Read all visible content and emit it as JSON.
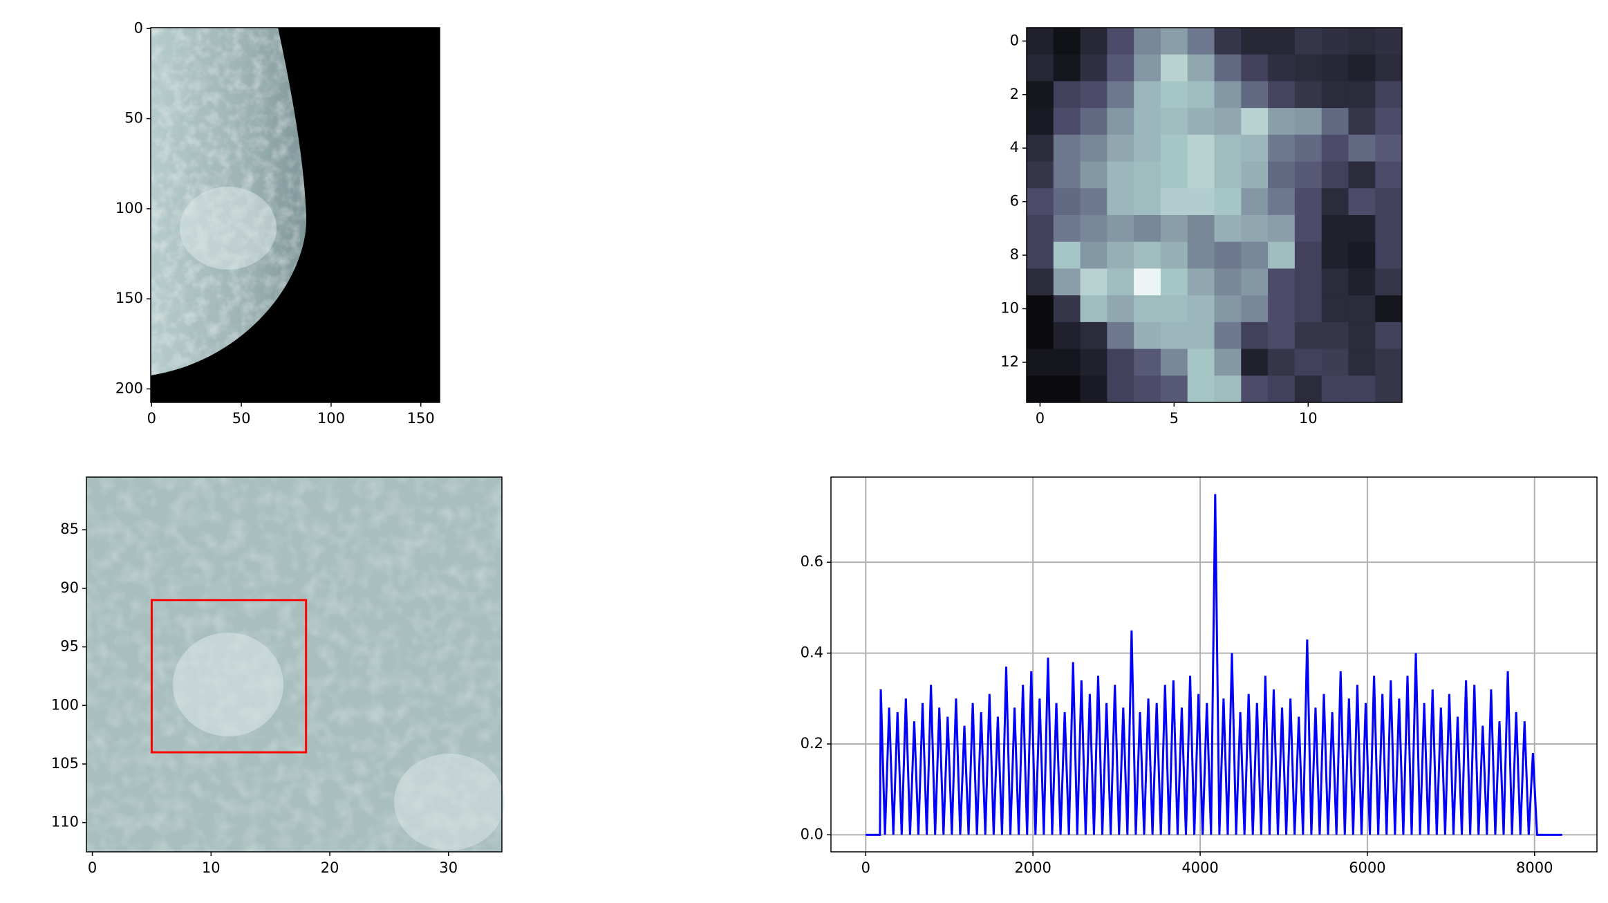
{
  "chart_data": [
    {
      "type": "image",
      "xlim": [
        -0.5,
        160.5
      ],
      "ylim": [
        207.5,
        -0.5
      ],
      "xticks": [
        0,
        50,
        100,
        150
      ],
      "yticks": [
        0,
        50,
        100,
        150,
        200
      ]
    },
    {
      "type": "heatmap",
      "colormap": "bone",
      "xlim": [
        -0.5,
        13.5
      ],
      "ylim": [
        13.5,
        -0.5
      ],
      "xticks": [
        0,
        5,
        10
      ],
      "yticks": [
        0,
        2,
        4,
        6,
        8,
        10,
        12
      ],
      "values": [
        [
          0.15,
          0.08,
          0.18,
          0.35,
          0.55,
          0.62,
          0.5,
          0.25,
          0.18,
          0.18,
          0.25,
          0.22,
          0.2,
          0.22
        ],
        [
          0.18,
          0.1,
          0.22,
          0.4,
          0.6,
          0.8,
          0.65,
          0.45,
          0.3,
          0.22,
          0.2,
          0.18,
          0.15,
          0.2
        ],
        [
          0.1,
          0.3,
          0.35,
          0.5,
          0.7,
          0.75,
          0.72,
          0.6,
          0.45,
          0.32,
          0.25,
          0.2,
          0.2,
          0.3
        ],
        [
          0.12,
          0.35,
          0.45,
          0.6,
          0.7,
          0.72,
          0.68,
          0.65,
          0.8,
          0.62,
          0.6,
          0.45,
          0.25,
          0.35
        ],
        [
          0.2,
          0.5,
          0.55,
          0.65,
          0.7,
          0.75,
          0.8,
          0.72,
          0.7,
          0.5,
          0.45,
          0.35,
          0.45,
          0.4
        ],
        [
          0.25,
          0.5,
          0.6,
          0.7,
          0.72,
          0.75,
          0.8,
          0.72,
          0.68,
          0.45,
          0.4,
          0.3,
          0.2,
          0.35
        ],
        [
          0.35,
          0.45,
          0.5,
          0.7,
          0.72,
          0.78,
          0.78,
          0.75,
          0.6,
          0.5,
          0.35,
          0.2,
          0.35,
          0.3
        ],
        [
          0.3,
          0.5,
          0.55,
          0.6,
          0.55,
          0.62,
          0.55,
          0.68,
          0.65,
          0.62,
          0.35,
          0.15,
          0.15,
          0.3
        ],
        [
          0.3,
          0.75,
          0.6,
          0.68,
          0.72,
          0.68,
          0.55,
          0.5,
          0.55,
          0.72,
          0.3,
          0.15,
          0.12,
          0.3
        ],
        [
          0.2,
          0.62,
          0.8,
          0.72,
          0.95,
          0.75,
          0.65,
          0.55,
          0.6,
          0.35,
          0.3,
          0.2,
          0.15,
          0.25
        ],
        [
          0.05,
          0.25,
          0.72,
          0.65,
          0.72,
          0.72,
          0.7,
          0.6,
          0.55,
          0.35,
          0.3,
          0.2,
          0.2,
          0.1
        ],
        [
          0.05,
          0.15,
          0.2,
          0.5,
          0.68,
          0.7,
          0.7,
          0.5,
          0.3,
          0.35,
          0.25,
          0.25,
          0.2,
          0.3
        ],
        [
          0.1,
          0.1,
          0.15,
          0.3,
          0.4,
          0.55,
          0.75,
          0.6,
          0.15,
          0.25,
          0.3,
          0.28,
          0.2,
          0.25
        ],
        [
          0.05,
          0.05,
          0.12,
          0.3,
          0.35,
          0.4,
          0.75,
          0.72,
          0.35,
          0.3,
          0.2,
          0.3,
          0.3,
          0.25
        ]
      ]
    },
    {
      "type": "image",
      "xlim": [
        -0.5,
        34.5
      ],
      "ylim": [
        112.5,
        80.5
      ],
      "xticks": [
        0,
        10,
        20,
        30
      ],
      "yticks": [
        85,
        90,
        95,
        100,
        105,
        110
      ],
      "box": {
        "x0": 5,
        "x1": 18,
        "y0": 91,
        "y1": 104,
        "color": "#ff0000"
      }
    },
    {
      "type": "line",
      "xlim": [
        -416,
        8746
      ],
      "ylim": [
        -0.0375,
        0.7875
      ],
      "xticks": [
        0,
        2000,
        4000,
        6000,
        8000
      ],
      "yticks": [
        {
          "value": 0,
          "label": "0.0"
        },
        0.2,
        0.4,
        0.6
      ],
      "grid": true,
      "color": "#0000ff",
      "x": [
        0,
        170,
        180,
        230,
        280,
        330,
        380,
        430,
        480,
        530,
        580,
        630,
        680,
        730,
        780,
        830,
        880,
        930,
        980,
        1030,
        1080,
        1130,
        1180,
        1230,
        1280,
        1330,
        1380,
        1430,
        1480,
        1530,
        1580,
        1630,
        1680,
        1730,
        1780,
        1830,
        1880,
        1930,
        1980,
        2030,
        2080,
        2130,
        2180,
        2230,
        2280,
        2330,
        2380,
        2430,
        2480,
        2530,
        2580,
        2630,
        2680,
        2730,
        2780,
        2830,
        2880,
        2930,
        2980,
        3030,
        3080,
        3130,
        3180,
        3230,
        3280,
        3330,
        3380,
        3430,
        3480,
        3530,
        3580,
        3630,
        3680,
        3730,
        3780,
        3830,
        3880,
        3930,
        3980,
        4030,
        4080,
        4130,
        4180,
        4230,
        4280,
        4330,
        4380,
        4430,
        4480,
        4530,
        4580,
        4630,
        4680,
        4730,
        4780,
        4830,
        4880,
        4930,
        4980,
        5030,
        5080,
        5130,
        5180,
        5230,
        5280,
        5330,
        5380,
        5430,
        5480,
        5530,
        5580,
        5630,
        5680,
        5730,
        5780,
        5830,
        5880,
        5930,
        5980,
        6030,
        6080,
        6130,
        6180,
        6230,
        6280,
        6330,
        6380,
        6430,
        6480,
        6530,
        6580,
        6630,
        6680,
        6730,
        6780,
        6830,
        6880,
        6930,
        6980,
        7030,
        7080,
        7130,
        7180,
        7230,
        7280,
        7330,
        7380,
        7430,
        7480,
        7530,
        7580,
        7630,
        7680,
        7730,
        7780,
        7830,
        7880,
        7930,
        7980,
        8030,
        8330
      ],
      "values": [
        0,
        0,
        0.32,
        0,
        0.28,
        0,
        0.27,
        0,
        0.3,
        0,
        0.25,
        0,
        0.29,
        0,
        0.33,
        0,
        0.28,
        0,
        0.26,
        0,
        0.3,
        0,
        0.24,
        0,
        0.29,
        0,
        0.27,
        0,
        0.31,
        0,
        0.26,
        0,
        0.37,
        0,
        0.28,
        0,
        0.33,
        0,
        0.36,
        0,
        0.3,
        0,
        0.39,
        0,
        0.29,
        0,
        0.27,
        0,
        0.38,
        0,
        0.34,
        0,
        0.31,
        0,
        0.35,
        0,
        0.29,
        0,
        0.33,
        0,
        0.28,
        0,
        0.45,
        0,
        0.27,
        0,
        0.3,
        0,
        0.29,
        0,
        0.33,
        0,
        0.34,
        0,
        0.28,
        0,
        0.35,
        0,
        0.31,
        0,
        0.29,
        0,
        0.75,
        0,
        0.3,
        0,
        0.4,
        0,
        0.27,
        0,
        0.31,
        0,
        0.29,
        0,
        0.35,
        0,
        0.32,
        0,
        0.28,
        0,
        0.3,
        0,
        0.26,
        0,
        0.43,
        0,
        0.28,
        0,
        0.31,
        0,
        0.27,
        0,
        0.36,
        0,
        0.3,
        0,
        0.33,
        0,
        0.29,
        0,
        0.35,
        0,
        0.31,
        0,
        0.34,
        0,
        0.3,
        0,
        0.35,
        0,
        0.4,
        0,
        0.29,
        0,
        0.32,
        0,
        0.28,
        0,
        0.31,
        0,
        0.26,
        0,
        0.34,
        0,
        0.33,
        0,
        0.24,
        0,
        0.32,
        0,
        0.25,
        0,
        0.36,
        0,
        0.27,
        0,
        0.25,
        0,
        0.18,
        0,
        0
      ]
    }
  ]
}
